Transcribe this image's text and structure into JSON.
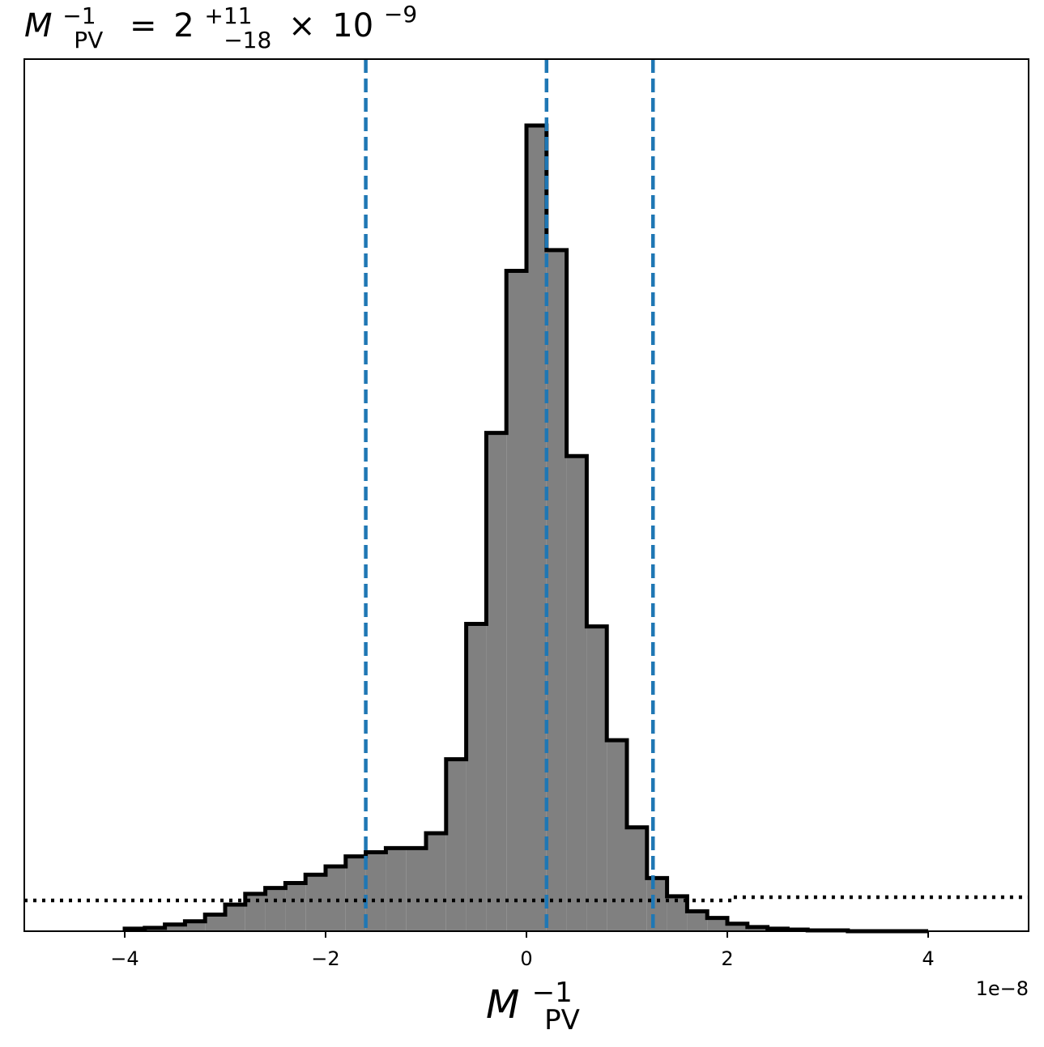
{
  "chart_data": {
    "type": "histogram",
    "title": {
      "lhs_base": "M",
      "lhs_sup": "−1",
      "lhs_sub": "PV",
      "equals": "=",
      "value": "2",
      "plus": "+11",
      "minus": "−18",
      "times": "×",
      "scale_base": "10",
      "scale_exp": "−9"
    },
    "xlabel": {
      "base": "M",
      "sup": "−1",
      "sub": "PV"
    },
    "x_offset_label": "1e−8",
    "xlim": [
      -5.0,
      5.0
    ],
    "ylim": [
      0,
      1.05
    ],
    "x_ticks": [
      {
        "value": -4,
        "label": "−4"
      },
      {
        "value": -2,
        "label": "−2"
      },
      {
        "value": 0,
        "label": "0"
      },
      {
        "value": 2,
        "label": "2"
      },
      {
        "value": 4,
        "label": "4"
      }
    ],
    "bin_edges": [
      -4.0,
      -3.8,
      -3.6,
      -3.4,
      -3.2,
      -3.0,
      -2.8,
      -2.6,
      -2.4,
      -2.2,
      -2.0,
      -1.8,
      -1.6,
      -1.4,
      -1.2,
      -1.0,
      -0.8,
      -0.6,
      -0.4,
      -0.2,
      0.0,
      0.2,
      0.4,
      0.6,
      0.8,
      1.0,
      1.2,
      1.4,
      1.6,
      1.8,
      2.0,
      2.2,
      2.4,
      2.6,
      2.8,
      3.0,
      3.2,
      3.4,
      3.6,
      3.8,
      4.0
    ],
    "values": [
      0.003,
      0.004,
      0.008,
      0.012,
      0.02,
      0.032,
      0.045,
      0.052,
      0.058,
      0.068,
      0.078,
      0.09,
      0.095,
      0.1,
      0.1,
      0.118,
      0.207,
      0.37,
      0.6,
      0.795,
      0.97,
      0.82,
      0.572,
      0.367,
      0.23,
      0.125,
      0.064,
      0.042,
      0.024,
      0.016,
      0.009,
      0.005,
      0.003,
      0.002,
      0.001,
      0.001,
      0.0,
      0.0,
      0.0,
      0.0
    ],
    "vlines": {
      "color": "#1f77b4",
      "style": "dashed",
      "x": [
        -1.6,
        0.2,
        1.26
      ]
    },
    "prior_line": {
      "color": "#000000",
      "style": "dotted",
      "points": [
        [
          -5.0,
          0.037
        ],
        [
          2.05,
          0.037
        ],
        [
          2.05,
          0.041
        ],
        [
          5.0,
          0.041
        ]
      ]
    },
    "hist_fill": "#808080",
    "hist_edge": "#000000",
    "grid": false,
    "yticks_visible": false
  }
}
